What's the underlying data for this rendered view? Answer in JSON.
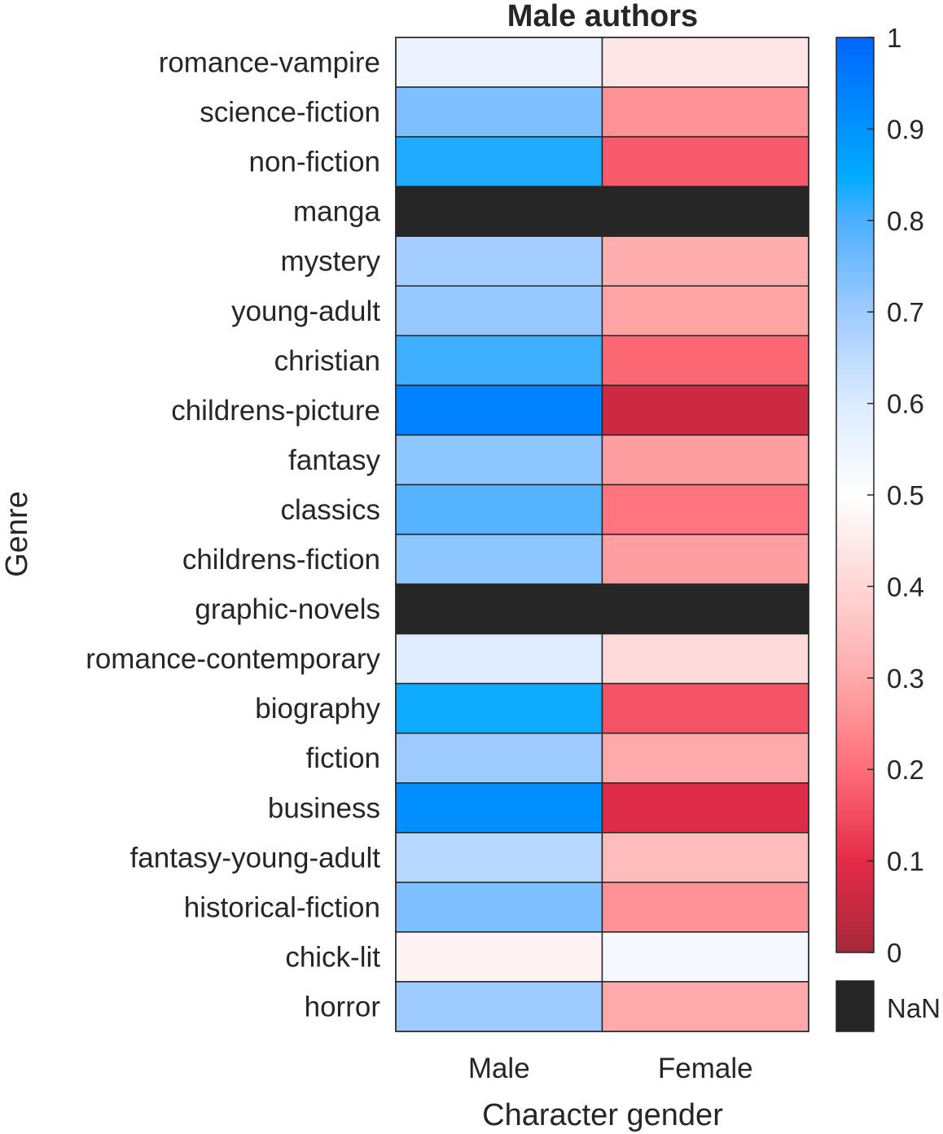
{
  "chart_data": {
    "type": "heatmap",
    "title": "Male authors",
    "xlabel": "Character gender",
    "ylabel": "Genre",
    "x_categories": [
      "Male",
      "Female"
    ],
    "y_categories": [
      "romance-vampire",
      "science-fiction",
      "non-fiction",
      "manga",
      "mystery",
      "young-adult",
      "christian",
      "childrens-picture",
      "fantasy",
      "classics",
      "childrens-fiction",
      "graphic-novels",
      "romance-contemporary",
      "biography",
      "fiction",
      "business",
      "fantasy-young-adult",
      "historical-fiction",
      "chick-lit",
      "horror"
    ],
    "values": [
      [
        0.56,
        0.44
      ],
      [
        0.74,
        0.26
      ],
      [
        0.83,
        0.17
      ],
      [
        null,
        null
      ],
      [
        0.69,
        0.31
      ],
      [
        0.71,
        0.29
      ],
      [
        0.81,
        0.19
      ],
      [
        0.94,
        0.06
      ],
      [
        0.72,
        0.28
      ],
      [
        0.79,
        0.21
      ],
      [
        0.72,
        0.28
      ],
      [
        null,
        null
      ],
      [
        0.59,
        0.41
      ],
      [
        0.84,
        0.16
      ],
      [
        0.7,
        0.3
      ],
      [
        0.91,
        0.09
      ],
      [
        0.66,
        0.34
      ],
      [
        0.74,
        0.26
      ],
      [
        0.47,
        0.53
      ],
      [
        0.7,
        0.3
      ]
    ],
    "colorbar": {
      "range": [
        0,
        1
      ],
      "ticks": [
        "0",
        "0.1",
        "0.2",
        "0.3",
        "0.4",
        "0.5",
        "0.6",
        "0.7",
        "0.8",
        "0.9",
        "1"
      ],
      "nan_label": "NaN",
      "nan_color": "#262626",
      "stops": [
        {
          "v": 0.0,
          "color": "#a6293a"
        },
        {
          "v": 0.1,
          "color": "#e42b48"
        },
        {
          "v": 0.2,
          "color": "#ff6e79"
        },
        {
          "v": 0.3,
          "color": "#ffaaaa"
        },
        {
          "v": 0.4,
          "color": "#ffd6d6"
        },
        {
          "v": 0.5,
          "color": "#ffffff"
        },
        {
          "v": 0.6,
          "color": "#dcebff"
        },
        {
          "v": 0.7,
          "color": "#9ecbff"
        },
        {
          "v": 0.8,
          "color": "#4db0ff"
        },
        {
          "v": 0.85,
          "color": "#00aaff"
        },
        {
          "v": 1.0,
          "color": "#0066ff"
        }
      ]
    }
  }
}
